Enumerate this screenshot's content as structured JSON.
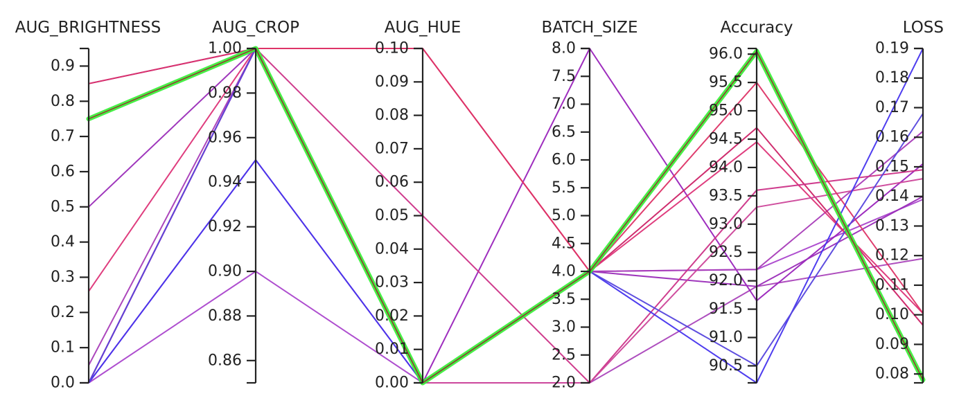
{
  "chart_data": {
    "type": "parallel_coordinates",
    "title": "",
    "grid": false,
    "legend": "none",
    "highlight_color": "#33ee33",
    "axes": [
      {
        "name": "AUG_BRIGHTNESS",
        "range": [
          0.0,
          0.95
        ],
        "ticks": [
          {
            "value": 0.0,
            "label": "0.0"
          },
          {
            "value": 0.1,
            "label": "0.1"
          },
          {
            "value": 0.2,
            "label": "0.2"
          },
          {
            "value": 0.3,
            "label": "0.3"
          },
          {
            "value": 0.4,
            "label": "0.4"
          },
          {
            "value": 0.5,
            "label": "0.5"
          },
          {
            "value": 0.6,
            "label": "0.6"
          },
          {
            "value": 0.7,
            "label": "0.7"
          },
          {
            "value": 0.8,
            "label": "0.8"
          },
          {
            "value": 0.9,
            "label": "0.9"
          }
        ]
      },
      {
        "name": "AUG_CROP",
        "range": [
          0.85,
          1.0
        ],
        "ticks": [
          {
            "value": 0.86,
            "label": "0.86"
          },
          {
            "value": 0.88,
            "label": "0.88"
          },
          {
            "value": 0.9,
            "label": "0.90"
          },
          {
            "value": 0.92,
            "label": "0.92"
          },
          {
            "value": 0.94,
            "label": "0.94"
          },
          {
            "value": 0.96,
            "label": "0.96"
          },
          {
            "value": 0.98,
            "label": "0.98"
          },
          {
            "value": 1.0,
            "label": "1.00"
          }
        ]
      },
      {
        "name": "AUG_HUE",
        "range": [
          0.0,
          0.1
        ],
        "ticks": [
          {
            "value": 0.0,
            "label": "0.00"
          },
          {
            "value": 0.01,
            "label": "0.01"
          },
          {
            "value": 0.02,
            "label": "0.02"
          },
          {
            "value": 0.03,
            "label": "0.03"
          },
          {
            "value": 0.04,
            "label": "0.04"
          },
          {
            "value": 0.05,
            "label": "0.05"
          },
          {
            "value": 0.06,
            "label": "0.06"
          },
          {
            "value": 0.07,
            "label": "0.07"
          },
          {
            "value": 0.08,
            "label": "0.08"
          },
          {
            "value": 0.09,
            "label": "0.09"
          },
          {
            "value": 0.1,
            "label": "0.10"
          }
        ]
      },
      {
        "name": "BATCH_SIZE",
        "range": [
          2.0,
          8.0
        ],
        "ticks": [
          {
            "value": 2.0,
            "label": "2.0"
          },
          {
            "value": 2.5,
            "label": "2.5"
          },
          {
            "value": 3.0,
            "label": "3.0"
          },
          {
            "value": 3.5,
            "label": "3.5"
          },
          {
            "value": 4.0,
            "label": "4.0"
          },
          {
            "value": 4.5,
            "label": "4.5"
          },
          {
            "value": 5.0,
            "label": "5.0"
          },
          {
            "value": 5.5,
            "label": "5.5"
          },
          {
            "value": 6.0,
            "label": "6.0"
          },
          {
            "value": 6.5,
            "label": "6.5"
          },
          {
            "value": 7.0,
            "label": "7.0"
          },
          {
            "value": 7.5,
            "label": "7.5"
          },
          {
            "value": 8.0,
            "label": "8.0"
          }
        ]
      },
      {
        "name": "Accuracy",
        "range": [
          90.2,
          96.1
        ],
        "ticks": [
          {
            "value": 90.5,
            "label": "90.5"
          },
          {
            "value": 91.0,
            "label": "91.0"
          },
          {
            "value": 91.5,
            "label": "91.5"
          },
          {
            "value": 92.0,
            "label": "92.0"
          },
          {
            "value": 92.5,
            "label": "92.5"
          },
          {
            "value": 93.0,
            "label": "93.0"
          },
          {
            "value": 93.5,
            "label": "93.5"
          },
          {
            "value": 94.0,
            "label": "94.0"
          },
          {
            "value": 94.5,
            "label": "94.5"
          },
          {
            "value": 95.0,
            "label": "95.0"
          },
          {
            "value": 95.5,
            "label": "95.5"
          },
          {
            "value": 96.0,
            "label": "96.0"
          }
        ]
      },
      {
        "name": "LOSS",
        "range": [
          0.077,
          0.19
        ],
        "ticks": [
          {
            "value": 0.08,
            "label": "0.08"
          },
          {
            "value": 0.09,
            "label": "0.09"
          },
          {
            "value": 0.1,
            "label": "0.10"
          },
          {
            "value": 0.11,
            "label": "0.11"
          },
          {
            "value": 0.12,
            "label": "0.12"
          },
          {
            "value": 0.13,
            "label": "0.13"
          },
          {
            "value": 0.14,
            "label": "0.14"
          },
          {
            "value": 0.15,
            "label": "0.15"
          },
          {
            "value": 0.16,
            "label": "0.16"
          },
          {
            "value": 0.17,
            "label": "0.17"
          },
          {
            "value": 0.18,
            "label": "0.18"
          },
          {
            "value": 0.19,
            "label": "0.19"
          }
        ]
      }
    ],
    "series": [
      {
        "values": [
          0.0,
          0.95,
          0.0,
          2.0,
          91.9,
          0.119
        ],
        "color": "#aa44bb"
      },
      {
        "values": [
          0.0,
          0.9,
          0.0,
          4.0,
          92.2,
          0.139
        ],
        "color": "#aa44cc"
      },
      {
        "values": [
          0.85,
          1.0,
          0.0,
          8.0,
          91.65,
          0.151
        ],
        "color": "#9922bb"
      },
      {
        "values": [
          0.5,
          1.0,
          0.0,
          4.0,
          91.9,
          0.14
        ],
        "color": "#9a2cb8"
      },
      {
        "values": [
          0.05,
          1.0,
          0.0,
          4.0,
          92.2,
          0.162
        ],
        "color": "#a83cb8"
      },
      {
        "values": [
          0.0,
          1.0,
          0.0,
          4.0,
          94.7,
          0.0965
        ],
        "color": "#cc2266"
      },
      {
        "values": [
          0.26,
          1.0,
          0.1,
          4.0,
          94.45,
          0.1005
        ],
        "color": "#dd3377"
      },
      {
        "values": [
          0.0,
          1.0,
          0.05,
          2.0,
          93.6,
          0.149
        ],
        "color": "#cc3388"
      },
      {
        "values": [
          0.0,
          1.0,
          0.0,
          2.0,
          93.3,
          0.146
        ],
        "color": "#cc4499"
      },
      {
        "values": [
          0.85,
          1.0,
          0.1,
          4.0,
          95.5,
          0.1005
        ],
        "color": "#dd3366"
      },
      {
        "values": [
          0.0,
          0.95,
          0.0,
          4.0,
          90.2,
          0.19
        ],
        "color": "#4433ee"
      },
      {
        "values": [
          0.0,
          1.0,
          0.0,
          4.0,
          90.5,
          0.168
        ],
        "color": "#5544dd"
      },
      {
        "values": [
          0.75,
          1.0,
          0.0,
          4.0,
          96.05,
          0.078
        ],
        "color": "#993333",
        "highlight": true
      }
    ]
  }
}
